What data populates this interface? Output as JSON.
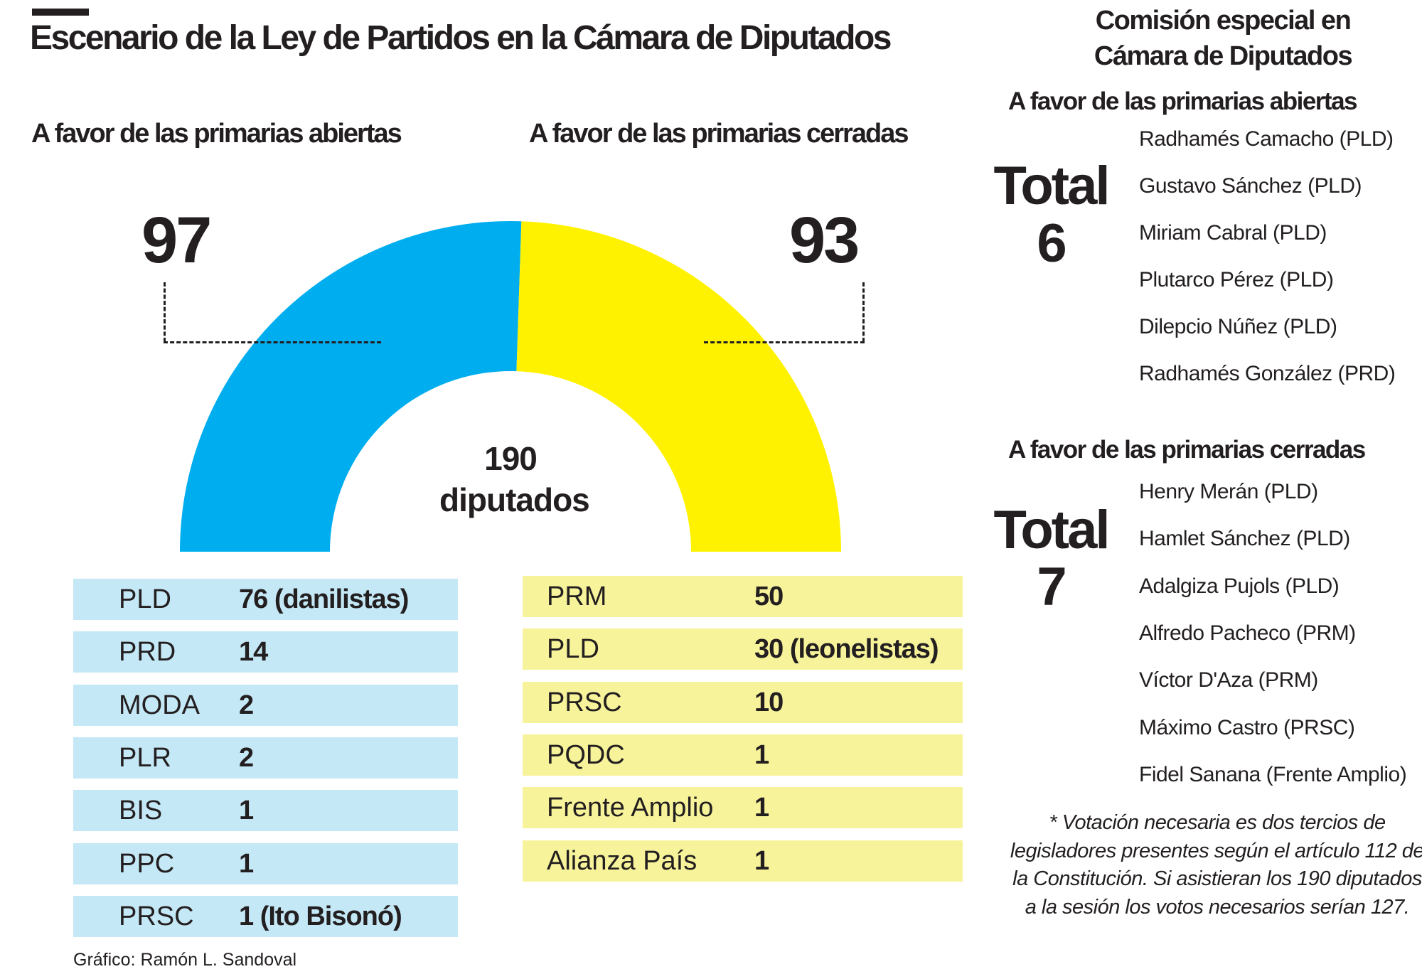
{
  "title": "Escenario de la Ley de Partidos en la Cámara de Diputados",
  "left_heading": "A favor de las primarias abiertas",
  "right_heading": "A favor de las primarias cerradas",
  "chart_data": {
    "type": "pie",
    "shape": "half-donut",
    "values": [
      97,
      93
    ],
    "labels": [
      "97",
      "93"
    ],
    "colors": [
      "#00aeef",
      "#fff200"
    ],
    "center_label": [
      "190",
      "diputados"
    ]
  },
  "open_parties": [
    {
      "party": "PLD",
      "value": "76 (danilistas)"
    },
    {
      "party": "PRD",
      "value": "14"
    },
    {
      "party": "MODA",
      "value": "2"
    },
    {
      "party": "PLR",
      "value": "2"
    },
    {
      "party": "BIS",
      "value": "1"
    },
    {
      "party": "PPC",
      "value": "1"
    },
    {
      "party": "PRSC",
      "value": "1 (Ito Bisonó)"
    }
  ],
  "closed_parties": [
    {
      "party": "PRM",
      "value": "50"
    },
    {
      "party": "PLD",
      "value": "30 (leonelistas)"
    },
    {
      "party": "PRSC",
      "value": "10"
    },
    {
      "party": "PQDC",
      "value": "1"
    },
    {
      "party": "Frente Amplio",
      "value": "1"
    },
    {
      "party": "Alianza País",
      "value": "1"
    }
  ],
  "credit": "Gráfico: Ramón L. Sandoval",
  "commission": {
    "heading": [
      "Comisión especial en",
      "Cámara de Diputados"
    ],
    "open": {
      "heading": "A favor de las primarias abiertas",
      "total_label": "Total",
      "total": "6",
      "members": [
        "Radhamés Camacho (PLD)",
        "Gustavo Sánchez (PLD)",
        "Miriam Cabral (PLD)",
        "Plutarco Pérez (PLD)",
        "Dilepcio Núñez (PLD)",
        "Radhamés González (PRD)"
      ]
    },
    "closed": {
      "heading": "A favor de las primarias cerradas",
      "total_label": "Total",
      "total": "7",
      "members": [
        "Henry Merán (PLD)",
        "Hamlet Sánchez (PLD)",
        "Adalgiza Pujols (PLD)",
        "Alfredo Pacheco (PRM)",
        "Víctor D'Aza (PRM)",
        "Máximo Castro (PRSC)",
        "Fidel Sanana (Frente Amplio)"
      ]
    }
  },
  "note": "* Votación necesaria es dos tercios de legisladores presentes según el artículo 112 de la Constitución. Si asistieran los 190 diputados a la sesión los votos necesarios serían 127."
}
